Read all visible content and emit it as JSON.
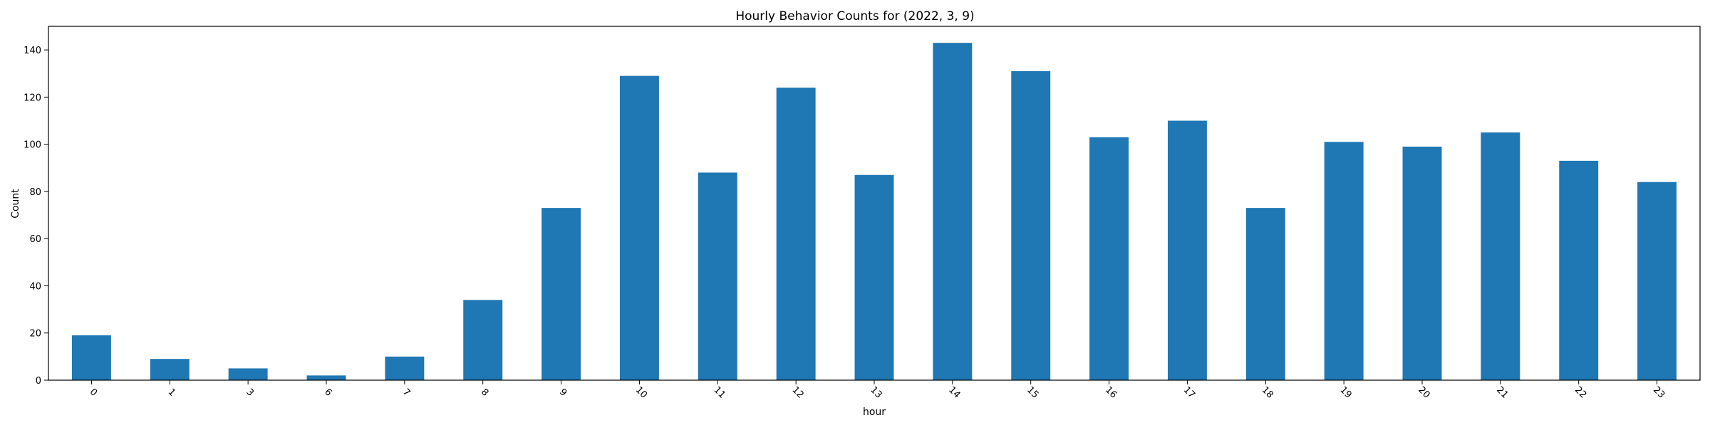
{
  "chart_data": {
    "type": "bar",
    "title": "Hourly Behavior Counts for (2022, 3, 9)",
    "xlabel": "hour",
    "ylabel": "Count",
    "categories": [
      "0",
      "1",
      "3",
      "6",
      "7",
      "8",
      "9",
      "10",
      "11",
      "12",
      "13",
      "14",
      "15",
      "16",
      "17",
      "18",
      "19",
      "20",
      "21",
      "22",
      "23"
    ],
    "values": [
      19,
      9,
      5,
      2,
      10,
      34,
      73,
      129,
      88,
      124,
      87,
      143,
      131,
      103,
      110,
      73,
      101,
      99,
      105,
      93,
      84
    ],
    "ylim": [
      0,
      150
    ],
    "yticks": [
      0,
      20,
      40,
      60,
      80,
      100,
      120,
      140
    ],
    "grid": false,
    "legend": "none",
    "bar_color": "#1f77b4",
    "x_tick_rotation": "45 degrees"
  }
}
